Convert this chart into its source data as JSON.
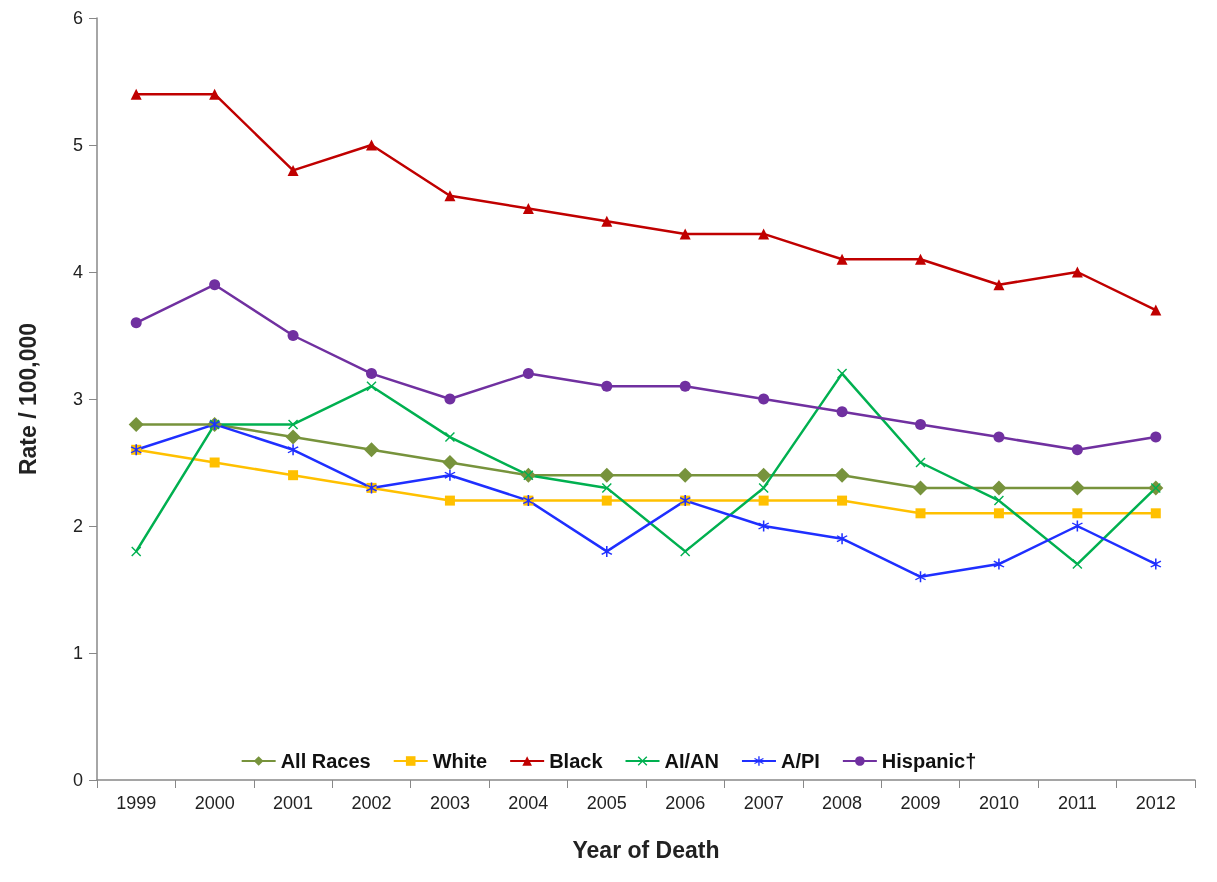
{
  "chart_data": {
    "type": "line",
    "xlabel": "Year of Death",
    "ylabel": "Rate / 100,000",
    "categories": [
      "1999",
      "2000",
      "2001",
      "2002",
      "2003",
      "2004",
      "2005",
      "2006",
      "2007",
      "2008",
      "2009",
      "2010",
      "2011",
      "2012"
    ],
    "series": [
      {
        "name": "All Races",
        "color": "#77933c",
        "marker": "diamond",
        "values": [
          2.8,
          2.8,
          2.7,
          2.6,
          2.5,
          2.4,
          2.4,
          2.4,
          2.4,
          2.4,
          2.3,
          2.3,
          2.3,
          2.3
        ]
      },
      {
        "name": "White",
        "color": "#ffc000",
        "marker": "square",
        "values": [
          2.6,
          2.5,
          2.4,
          2.3,
          2.2,
          2.2,
          2.2,
          2.2,
          2.2,
          2.2,
          2.1,
          2.1,
          2.1,
          2.1
        ]
      },
      {
        "name": "Black",
        "color": "#c00000",
        "marker": "triangle",
        "values": [
          5.4,
          5.4,
          4.8,
          5.0,
          4.6,
          4.5,
          4.4,
          4.3,
          4.3,
          4.1,
          4.1,
          3.9,
          4.0,
          3.7
        ]
      },
      {
        "name": "AI/AN",
        "color": "#00b050",
        "marker": "cross",
        "values": [
          1.8,
          2.8,
          2.8,
          3.1,
          2.7,
          2.4,
          2.3,
          1.8,
          2.3,
          3.2,
          2.5,
          2.2,
          1.7,
          2.3
        ]
      },
      {
        "name": "A/PI",
        "color": "#1f2fff",
        "marker": "star",
        "values": [
          2.6,
          2.8,
          2.6,
          2.3,
          2.4,
          2.2,
          1.8,
          2.2,
          2.0,
          1.9,
          1.6,
          1.7,
          2.0,
          1.7
        ]
      },
      {
        "name": "Hispanic†",
        "color": "#7030a0",
        "marker": "circle",
        "values": [
          3.6,
          3.9,
          3.5,
          3.2,
          3.0,
          3.2,
          3.1,
          3.1,
          3.0,
          2.9,
          2.8,
          2.7,
          2.6,
          2.7
        ]
      }
    ],
    "ylim": [
      0,
      6
    ],
    "yticks": [
      0,
      1,
      2,
      3,
      4,
      5,
      6
    ],
    "grid": false,
    "legend": "bottom",
    "line_style": "solid"
  }
}
